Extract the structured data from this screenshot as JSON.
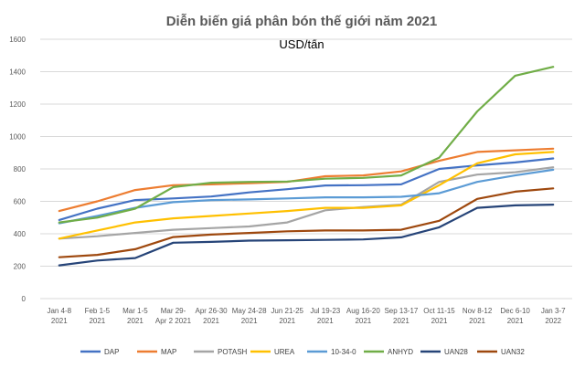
{
  "chart_data": {
    "type": "line",
    "title": "Diễn biến giá phân bón thế giới năm 2021",
    "subtitle": "USD/tấn",
    "xlabel": "",
    "ylabel": "",
    "ylim": [
      0,
      1600
    ],
    "yticks": [
      "0",
      "200",
      "400",
      "600",
      "800",
      "1000",
      "1200",
      "1400",
      "1600"
    ],
    "grid": true,
    "legend": "bottom",
    "categories": [
      [
        "Jan 4-8",
        "2021"
      ],
      [
        "Feb 1-5",
        "2021"
      ],
      [
        "Mar 1-5",
        "2021"
      ],
      [
        "Mar 29-",
        "Apr 2 2021"
      ],
      [
        "Apr 26-30",
        "2021"
      ],
      [
        "May 24-28",
        "2021"
      ],
      [
        "Jun 21-25",
        "2021"
      ],
      [
        "Jul 19-23",
        "2021"
      ],
      [
        "Aug 16-20",
        "2021"
      ],
      [
        "Sep 13-17",
        "2021"
      ],
      [
        "Oct 11-15",
        "2021"
      ],
      [
        "Nov 8-12",
        "2021"
      ],
      [
        "Dec 6-10",
        "2021"
      ],
      [
        "Jan 3-7",
        "2022"
      ]
    ],
    "series": [
      {
        "name": "DAP",
        "color": "#4472c4",
        "values": [
          485,
          555,
          608,
          618,
          630,
          655,
          675,
          698,
          700,
          705,
          800,
          822,
          840,
          865
        ]
      },
      {
        "name": "MAP",
        "color": "#ed7d31",
        "values": [
          540,
          600,
          670,
          700,
          705,
          712,
          720,
          755,
          760,
          785,
          850,
          905,
          915,
          925
        ]
      },
      {
        "name": "POTASH",
        "color": "#a5a5a5",
        "values": [
          370,
          385,
          405,
          425,
          435,
          445,
          470,
          545,
          565,
          580,
          720,
          765,
          780,
          810
        ]
      },
      {
        "name": "UREA",
        "color": "#ffc000",
        "values": [
          370,
          420,
          470,
          495,
          510,
          525,
          540,
          560,
          560,
          575,
          700,
          835,
          890,
          905
        ]
      },
      {
        "name": "10-34-0",
        "color": "#5b9bd5",
        "values": [
          465,
          510,
          560,
          595,
          608,
          612,
          618,
          625,
          625,
          628,
          650,
          720,
          760,
          795
        ]
      },
      {
        "name": "ANHYD",
        "color": "#70ad47",
        "values": [
          470,
          500,
          555,
          688,
          715,
          720,
          722,
          740,
          745,
          760,
          870,
          1155,
          1375,
          1430
        ]
      },
      {
        "name": "UAN28",
        "color": "#264478",
        "values": [
          205,
          235,
          250,
          345,
          350,
          358,
          360,
          362,
          365,
          378,
          440,
          560,
          575,
          580
        ]
      },
      {
        "name": "UAN32",
        "color": "#9e480e",
        "values": [
          255,
          270,
          305,
          380,
          395,
          405,
          415,
          420,
          420,
          425,
          480,
          615,
          660,
          680
        ]
      }
    ]
  }
}
